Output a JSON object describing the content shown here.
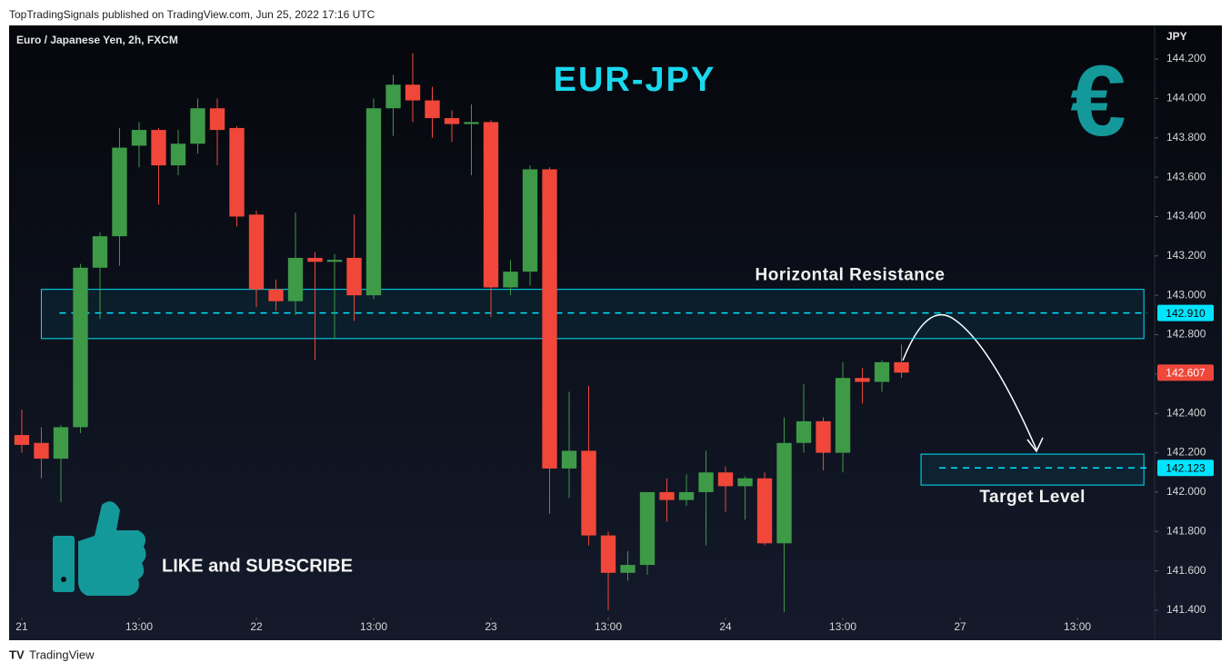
{
  "header": "TopTradingSignals published on TradingView.com, Jun 25, 2022 17:16 UTC",
  "footer": "TradingView",
  "chart_data": {
    "type": "candlestick",
    "symbol": "Euro / Japanese Yen, 2h, FXCM",
    "currency": "JPY",
    "title": "EUR-JPY",
    "icon": "€",
    "call_to_action": "LIKE and SUBSCRIBE",
    "up_color": "#3e9a47",
    "down_color": "#f0473a",
    "zone_color": "#00e5ff",
    "x": [
      0,
      1,
      2,
      3,
      4,
      5,
      6,
      7,
      8,
      9,
      10,
      11,
      12,
      13,
      14,
      15,
      16,
      17,
      18,
      19,
      20,
      21,
      22,
      23,
      24,
      25,
      26,
      27,
      28,
      29,
      30,
      31,
      32,
      33,
      34,
      35,
      36,
      37,
      38,
      39,
      40,
      41,
      42,
      43,
      44,
      45
    ],
    "open": [
      142.29,
      142.25,
      142.17,
      142.33,
      143.14,
      143.3,
      143.76,
      143.84,
      143.66,
      143.77,
      143.95,
      143.85,
      143.41,
      143.03,
      142.97,
      143.19,
      143.17,
      143.19,
      143.0,
      143.95,
      144.07,
      143.99,
      143.9,
      143.87,
      143.88,
      143.04,
      143.12,
      143.64,
      142.12,
      142.21,
      141.78,
      141.59,
      141.63,
      142.0,
      141.96,
      142.0,
      142.1,
      142.03,
      142.07,
      141.74,
      142.25,
      142.36,
      142.2,
      142.58,
      142.56,
      142.66
    ],
    "close": [
      142.24,
      142.17,
      142.33,
      143.14,
      143.3,
      143.75,
      143.84,
      143.66,
      143.77,
      143.95,
      143.84,
      143.4,
      143.03,
      142.97,
      143.19,
      143.17,
      143.18,
      143.0,
      143.95,
      144.07,
      143.99,
      143.9,
      143.87,
      143.88,
      143.04,
      143.12,
      143.64,
      142.12,
      142.21,
      141.78,
      141.59,
      141.63,
      142.0,
      141.96,
      142.0,
      142.1,
      142.03,
      142.07,
      141.74,
      142.25,
      142.36,
      142.2,
      142.58,
      142.56,
      142.66,
      142.607
    ],
    "high": [
      142.42,
      142.33,
      142.34,
      143.16,
      143.32,
      143.85,
      143.88,
      143.85,
      143.84,
      144.0,
      144.0,
      143.86,
      143.43,
      143.08,
      143.42,
      143.22,
      143.21,
      143.41,
      144.0,
      144.12,
      144.23,
      144.06,
      143.94,
      143.97,
      143.89,
      143.18,
      143.66,
      143.65,
      142.51,
      142.54,
      141.8,
      141.7,
      142.0,
      142.07,
      142.09,
      142.21,
      142.13,
      142.08,
      142.1,
      142.38,
      142.55,
      142.38,
      142.66,
      142.63,
      142.67,
      142.75
    ],
    "low": [
      142.2,
      142.07,
      141.95,
      142.3,
      142.88,
      143.15,
      143.65,
      143.46,
      143.61,
      143.72,
      143.66,
      143.35,
      142.94,
      142.92,
      142.9,
      142.67,
      142.78,
      142.87,
      142.98,
      143.81,
      143.88,
      143.8,
      143.78,
      143.61,
      142.89,
      143.0,
      143.05,
      141.89,
      141.97,
      141.73,
      141.4,
      141.55,
      141.58,
      141.85,
      141.93,
      141.73,
      141.9,
      141.86,
      141.73,
      141.39,
      142.2,
      142.11,
      142.1,
      142.45,
      142.51,
      142.58
    ],
    "last_price": 142.607,
    "last_price_label": "142.607",
    "zones": [
      {
        "label": "Horizontal Resistance",
        "low": 142.78,
        "high": 143.03,
        "level": 142.91,
        "level_label": "142.910"
      },
      {
        "label": "Target Level",
        "low": 142.036,
        "high": 142.193,
        "level": 142.123,
        "level_label": "142.123"
      }
    ],
    "xlim": [
      -0.65,
      57.95
    ],
    "ylim": [
      141.363,
      144.371
    ],
    "xticks": [
      {
        "value": 0,
        "label": "21"
      },
      {
        "value": 6,
        "label": "13:00"
      },
      {
        "value": 12,
        "label": "22"
      },
      {
        "value": 18,
        "label": "13:00"
      },
      {
        "value": 24,
        "label": "23"
      },
      {
        "value": 30,
        "label": "13:00"
      },
      {
        "value": 36,
        "label": "24"
      },
      {
        "value": 42,
        "label": "13:00"
      },
      {
        "value": 48,
        "label": "27"
      },
      {
        "value": 54,
        "label": "13:00"
      }
    ],
    "yticks": [
      {
        "value": 141.4,
        "label": "141.400"
      },
      {
        "value": 141.6,
        "label": "141.600"
      },
      {
        "value": 141.8,
        "label": "141.800"
      },
      {
        "value": 142.0,
        "label": "142.000"
      },
      {
        "value": 142.2,
        "label": "142.200"
      },
      {
        "value": 142.4,
        "label": "142.400"
      },
      {
        "value": 142.6,
        "label": "142.600"
      },
      {
        "value": 142.8,
        "label": "142.800"
      },
      {
        "value": 143.0,
        "label": "143.000"
      },
      {
        "value": 143.2,
        "label": "143.200"
      },
      {
        "value": 143.4,
        "label": "143.400"
      },
      {
        "value": 143.6,
        "label": "143.600"
      },
      {
        "value": 143.8,
        "label": "143.800"
      },
      {
        "value": 144.0,
        "label": "144.000"
      },
      {
        "value": 144.2,
        "label": "144.200"
      }
    ]
  }
}
